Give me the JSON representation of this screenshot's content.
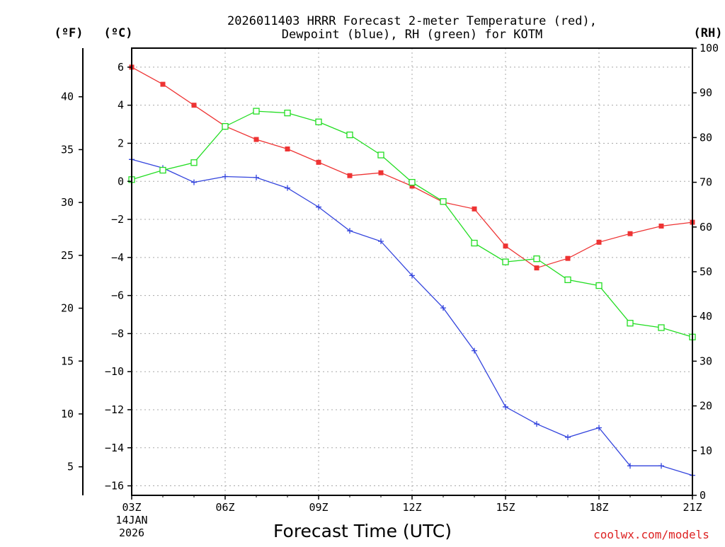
{
  "chart_data": {
    "type": "line",
    "title_line1": "2026011403 HRRR Forecast 2-meter Temperature (red),",
    "title_line2": "Dewpoint (blue), RH (green) for KOTM",
    "xlabel": "Forecast Time (UTC)",
    "start_date_line1": "14JAN",
    "start_date_line2": "2026",
    "credit": "coolwx.com/models",
    "left_unit_f": "(ºF)",
    "left_unit_c": "(ºC)",
    "right_unit": "(RH)",
    "x_hours": [
      3,
      4,
      5,
      6,
      7,
      8,
      9,
      10,
      11,
      12,
      13,
      14,
      15,
      16,
      17,
      18,
      19,
      20,
      21
    ],
    "x_tick_labels": [
      "03Z",
      "06Z",
      "09Z",
      "12Z",
      "15Z",
      "18Z",
      "21Z"
    ],
    "x_tick_hours": [
      3,
      6,
      9,
      12,
      15,
      18,
      21
    ],
    "xlim": [
      3,
      21
    ],
    "celsius_axis": {
      "ylim": [
        -16.5,
        7
      ],
      "ticks": [
        6,
        4,
        2,
        0,
        -2,
        -4,
        -6,
        -8,
        -10,
        -12,
        -14,
        -16
      ],
      "tick_labels": [
        "6",
        "4",
        "2",
        "0",
        "−2",
        "−4",
        "−6",
        "−8",
        "−10",
        "−12",
        "−14",
        "−16"
      ]
    },
    "fahrenheit_axis": {
      "ticks": [
        40,
        35,
        30,
        25,
        20,
        15,
        10,
        5
      ],
      "tick_labels": [
        "40",
        "35",
        "30",
        "25",
        "20",
        "15",
        "10",
        "5"
      ]
    },
    "rh_axis": {
      "ylim": [
        0,
        100
      ],
      "ticks": [
        100,
        90,
        80,
        70,
        60,
        50,
        40,
        30,
        20,
        10,
        0
      ],
      "tick_labels": [
        "100",
        "90",
        "80",
        "70",
        "60",
        "50",
        "40",
        "30",
        "20",
        "10",
        "0"
      ]
    },
    "series": [
      {
        "name": "Temperature",
        "color": "#ee3333",
        "marker": "filled-square",
        "axis": "celsius",
        "values": [
          6.0,
          5.1,
          4.0,
          2.9,
          2.2,
          1.7,
          1.0,
          0.3,
          0.45,
          -0.25,
          -1.1,
          -1.45,
          -3.4,
          -4.55,
          -4.05,
          -3.2,
          -2.75,
          -2.35,
          -2.15
        ]
      },
      {
        "name": "Dewpoint",
        "color": "#3344dd",
        "marker": "plus",
        "axis": "celsius",
        "values": [
          1.15,
          0.7,
          -0.05,
          0.25,
          0.2,
          -0.35,
          -1.35,
          -2.6,
          -3.15,
          -4.95,
          -6.65,
          -8.9,
          -11.85,
          -12.75,
          -13.45,
          -12.95,
          -14.95,
          -14.95,
          -15.45
        ]
      },
      {
        "name": "RH",
        "color": "#22dd22",
        "marker": "open-square",
        "axis": "rh",
        "values": [
          70.6,
          72.7,
          74.4,
          82.5,
          85.9,
          85.5,
          83.5,
          80.6,
          76.1,
          70.0,
          65.7,
          56.4,
          52.2,
          52.9,
          48.2,
          46.9,
          38.5,
          37.5,
          35.4
        ]
      }
    ]
  }
}
